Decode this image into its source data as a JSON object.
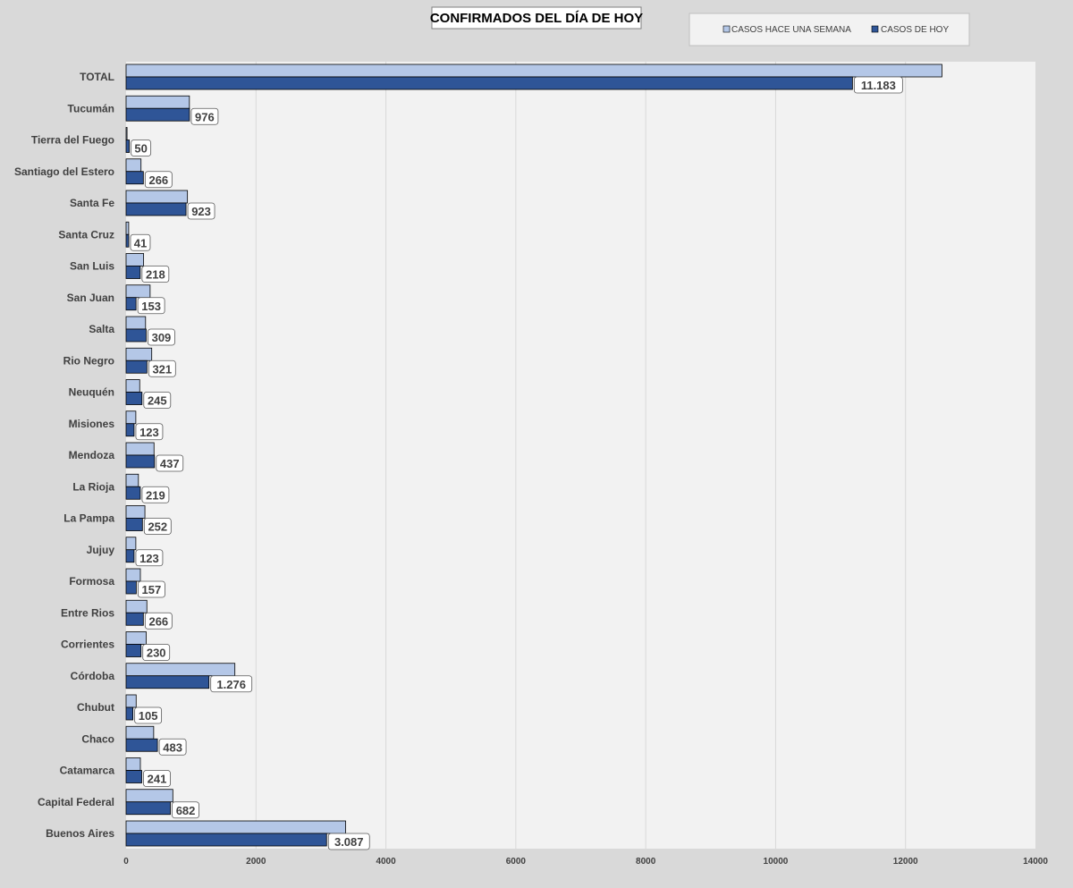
{
  "chart_data": {
    "type": "bar",
    "orientation": "horizontal",
    "title": "CONFIRMADOS DEL DÍA DE HOY",
    "categories": [
      "TOTAL",
      "Tucumán",
      "Tierra del Fuego",
      "Santiago del Estero",
      "Santa Fe",
      "Santa Cruz",
      "San Luis",
      "San Juan",
      "Salta",
      "Rio Negro",
      "Neuquén",
      "Misiones",
      "Mendoza",
      "La Rioja",
      "La Pampa",
      "Jujuy",
      "Formosa",
      "Entre Rios",
      "Corrientes",
      "Córdoba",
      "Chubut",
      "Chaco",
      "Catamarca",
      "Capital Federal",
      "Buenos Aires"
    ],
    "series": [
      {
        "name": "CASOS HACE UNA SEMANA",
        "color": "#b4c7e7",
        "values": [
          12560,
          975,
          15,
          230,
          945,
          40,
          270,
          370,
          300,
          395,
          210,
          150,
          430,
          190,
          290,
          150,
          220,
          320,
          310,
          1675,
          155,
          425,
          220,
          720,
          3380
        ]
      },
      {
        "name": "CASOS DE HOY",
        "color": "#2f5597",
        "values": [
          11183,
          976,
          50,
          266,
          923,
          41,
          218,
          153,
          309,
          321,
          245,
          123,
          437,
          219,
          252,
          123,
          157,
          266,
          230,
          1276,
          105,
          483,
          241,
          682,
          3087
        ],
        "data_labels": [
          "11.183",
          "976",
          "50",
          "266",
          "923",
          "41",
          "218",
          "153",
          "309",
          "321",
          "245",
          "123",
          "437",
          "219",
          "252",
          "123",
          "157",
          "266",
          "230",
          "1.276",
          "105",
          "483",
          "241",
          "682",
          "3.087"
        ]
      }
    ],
    "xlim": [
      0,
      14000
    ],
    "xticks": [
      0,
      2000,
      4000,
      6000,
      8000,
      10000,
      12000,
      14000
    ],
    "xlabel": "",
    "ylabel": "",
    "grid": true,
    "legend_position": "top-right"
  }
}
